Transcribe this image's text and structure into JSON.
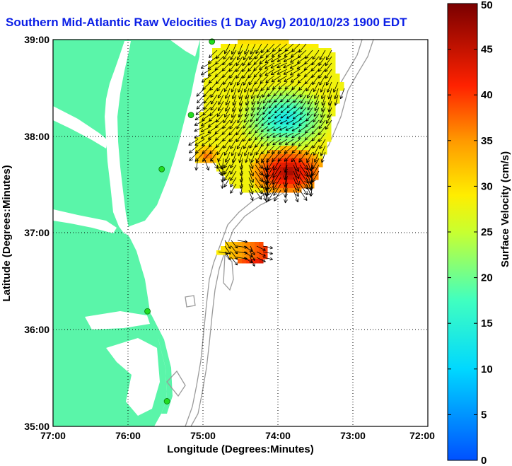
{
  "title": "Southern Mid-Atlantic Raw Velocities (1 Day Avg) 2010/10/23 1900 EDT",
  "axes": {
    "xlabel": "Longitude (Degrees:Minutes)",
    "ylabel": "Latitude (Degrees:Minutes)",
    "x_ticks": [
      "77:00",
      "76:00",
      "75:00",
      "74:00",
      "73:00",
      "72:00"
    ],
    "y_ticks": [
      "39:00",
      "38:00",
      "37:00",
      "36:00",
      "35:00"
    ],
    "x_range": [
      -77,
      -72
    ],
    "y_range": [
      35,
      39
    ]
  },
  "colorbar": {
    "label": "Surface Velocity (cm/s)",
    "ticks": [
      "50",
      "45",
      "40",
      "35",
      "30",
      "25",
      "20",
      "15",
      "10",
      "5",
      "0"
    ],
    "range": [
      0,
      50
    ]
  },
  "colors": {
    "land": "#5af5a9",
    "title": "#0a1ee6",
    "station": "#22dd22",
    "isobath": "#9a9a9a",
    "vector": "#000000"
  },
  "stations": [
    {
      "lon": -74.88,
      "lat": 38.98
    },
    {
      "lon": -75.16,
      "lat": 38.22
    },
    {
      "lon": -75.55,
      "lat": 37.66
    },
    {
      "lon": -75.74,
      "lat": 36.19
    },
    {
      "lon": -75.48,
      "lat": 35.26
    }
  ]
}
